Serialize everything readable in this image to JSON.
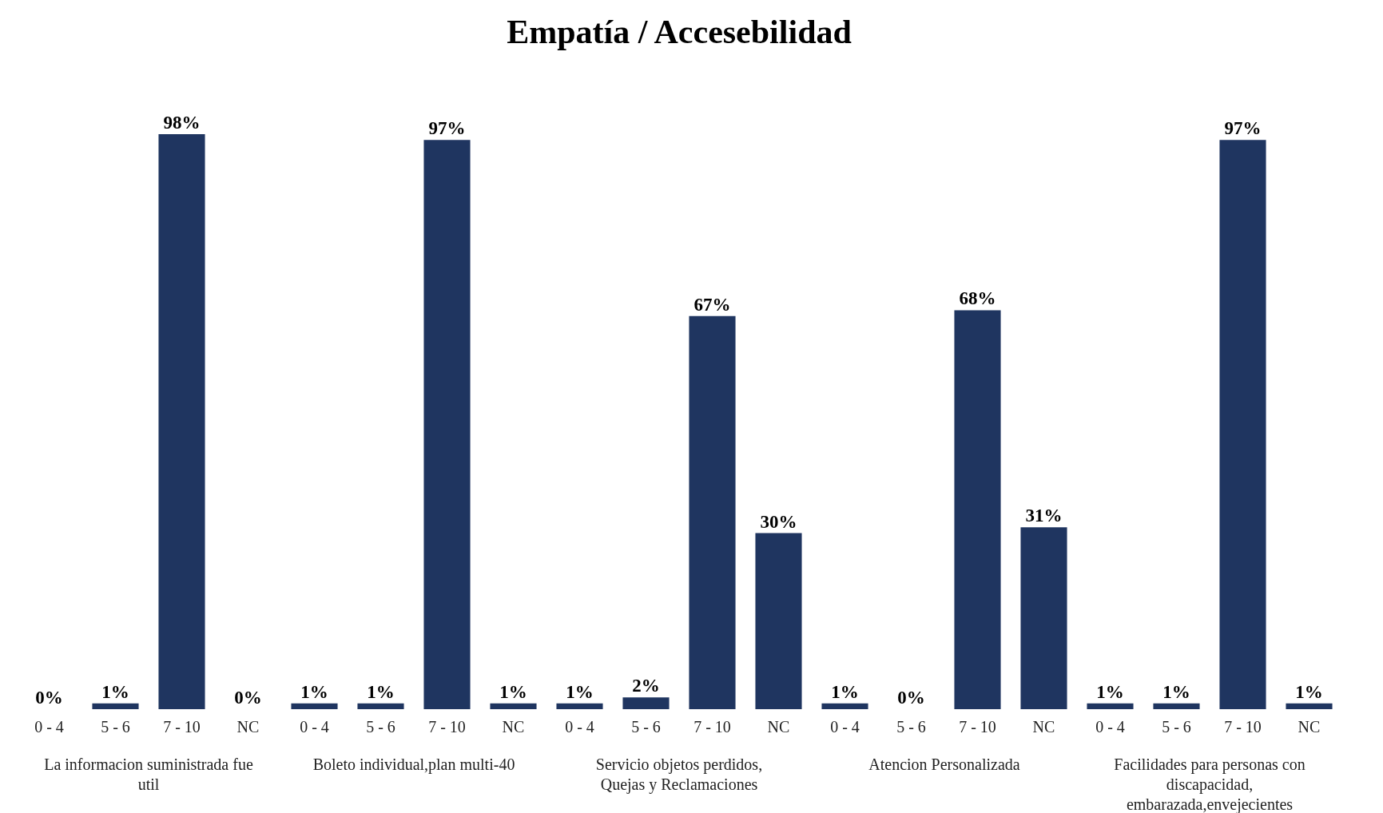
{
  "chart_data": {
    "type": "bar",
    "title": "Empatía / Accesebilidad",
    "categories": [
      "0 - 4",
      "5 - 6",
      "7 - 10",
      "NC",
      "0 - 4",
      "5 - 6",
      "7 - 10",
      "NC",
      "0 - 4",
      "5 - 6",
      "7 - 10",
      "NC",
      "0 - 4",
      "5 - 6",
      "7 - 10",
      "NC",
      "0 - 4",
      "5 - 6",
      "7 - 10",
      "NC"
    ],
    "values": [
      0,
      1,
      98,
      0,
      1,
      1,
      97,
      1,
      1,
      2,
      67,
      30,
      1,
      0,
      68,
      31,
      1,
      1,
      97,
      1
    ],
    "color": "#1f3560",
    "data_labels": true,
    "value_labels": [
      "0%",
      "1%",
      "98%",
      "0%",
      "1%",
      "1%",
      "97%",
      "1%",
      "1%",
      "2%",
      "67%",
      "30%",
      "1%",
      "0%",
      "68%",
      "31%",
      "1%",
      "1%",
      "97%",
      "1%"
    ],
    "annotations": [
      "La informacion suministrada fue util",
      "Boleto individual,plan multi-40",
      "Servicio objetos perdidos, Quejas y Reclamaciones",
      "Atencion Personalizada",
      "Facilidades para personas con discapacidad, embarazada,envejecientes"
    ],
    "grid": false
  }
}
